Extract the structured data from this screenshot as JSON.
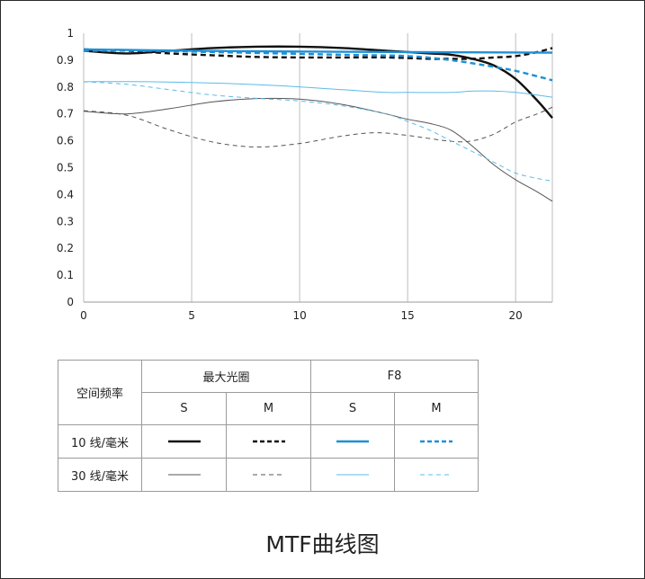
{
  "caption": "MTF曲线图",
  "colors": {
    "black": "#111111",
    "gray": "#555555",
    "blue": "#1e90d6",
    "lightblue": "#5bbbe8"
  },
  "legend_table": {
    "corner": "空间频率",
    "group_max": "最大光圈",
    "group_f8": "F8",
    "col_s": "S",
    "col_m": "M",
    "row_10": "10 线/毫米",
    "row_30": "30 线/毫米"
  },
  "chart_data": {
    "type": "line",
    "title": "",
    "xlabel": "",
    "ylabel": "",
    "xlim": [
      0,
      21.7
    ],
    "ylim": [
      0,
      1
    ],
    "x_ticks": [
      "0",
      "5",
      "10",
      "15",
      "20"
    ],
    "y_ticks": [
      "0",
      "0.1",
      "0.2",
      "0.3",
      "0.4",
      "0.5",
      "0.6",
      "0.7",
      "0.8",
      "0.9",
      "1"
    ],
    "grid": "vertical",
    "series": [
      {
        "group": "最大光圈",
        "freq": "10 线/毫米",
        "orient": "S",
        "color": "black",
        "style": "solid",
        "weight": "thick",
        "x": [
          0,
          2,
          4,
          6,
          8,
          10,
          12,
          14,
          16,
          17,
          18,
          19,
          20,
          21,
          21.7
        ],
        "y": [
          0.935,
          0.925,
          0.935,
          0.945,
          0.95,
          0.95,
          0.945,
          0.935,
          0.925,
          0.92,
          0.905,
          0.88,
          0.83,
          0.75,
          0.685
        ]
      },
      {
        "group": "最大光圈",
        "freq": "10 线/毫米",
        "orient": "M",
        "color": "black",
        "style": "dashed",
        "weight": "thick",
        "x": [
          0,
          2,
          4,
          6,
          8,
          10,
          12,
          14,
          16,
          17,
          18,
          19,
          20,
          21,
          21.7
        ],
        "y": [
          0.94,
          0.935,
          0.925,
          0.918,
          0.912,
          0.91,
          0.91,
          0.91,
          0.905,
          0.905,
          0.905,
          0.91,
          0.915,
          0.93,
          0.945
        ]
      },
      {
        "group": "F8",
        "freq": "10 线/毫米",
        "orient": "S",
        "color": "blue",
        "style": "solid",
        "weight": "thick",
        "x": [
          0,
          5,
          10,
          15,
          21.7
        ],
        "y": [
          0.94,
          0.935,
          0.932,
          0.93,
          0.928
        ]
      },
      {
        "group": "F8",
        "freq": "10 线/毫米",
        "orient": "M",
        "color": "blue",
        "style": "dashed",
        "weight": "thick",
        "x": [
          0,
          3,
          6,
          9,
          12,
          15,
          17,
          19,
          20,
          21,
          21.7
        ],
        "y": [
          0.935,
          0.935,
          0.93,
          0.925,
          0.92,
          0.915,
          0.9,
          0.875,
          0.86,
          0.84,
          0.825
        ]
      },
      {
        "group": "最大光圈",
        "freq": "30 线/毫米",
        "orient": "S",
        "color": "gray",
        "style": "solid",
        "weight": "thin",
        "x": [
          0,
          2,
          4,
          6,
          8,
          10,
          12,
          14,
          15,
          16,
          17,
          18,
          19,
          20,
          21,
          21.7
        ],
        "y": [
          0.71,
          0.7,
          0.72,
          0.745,
          0.757,
          0.755,
          0.735,
          0.7,
          0.68,
          0.665,
          0.64,
          0.58,
          0.51,
          0.455,
          0.41,
          0.375
        ]
      },
      {
        "group": "最大光圈",
        "freq": "30 线/毫米",
        "orient": "M",
        "color": "gray",
        "style": "dashed",
        "weight": "thin",
        "x": [
          0,
          2,
          4,
          6,
          8,
          10,
          12,
          13.5,
          15,
          17,
          18,
          19,
          20,
          21,
          21.7
        ],
        "y": [
          0.712,
          0.695,
          0.64,
          0.595,
          0.577,
          0.59,
          0.618,
          0.63,
          0.62,
          0.598,
          0.6,
          0.625,
          0.67,
          0.7,
          0.725
        ]
      },
      {
        "group": "F8",
        "freq": "30 线/毫米",
        "orient": "S",
        "color": "lightblue",
        "style": "solid",
        "weight": "thin",
        "x": [
          0,
          3,
          6,
          9,
          12,
          14,
          15,
          17,
          18,
          19,
          20,
          21,
          21.7
        ],
        "y": [
          0.82,
          0.82,
          0.815,
          0.805,
          0.79,
          0.78,
          0.78,
          0.78,
          0.785,
          0.785,
          0.78,
          0.77,
          0.762
        ]
      },
      {
        "group": "F8",
        "freq": "30 线/毫米",
        "orient": "M",
        "color": "lightblue",
        "style": "dashed",
        "weight": "thin",
        "x": [
          0,
          2,
          4,
          6,
          8,
          10,
          12,
          14,
          15,
          16,
          17,
          18,
          19,
          20,
          21,
          21.7
        ],
        "y": [
          0.82,
          0.81,
          0.79,
          0.77,
          0.758,
          0.748,
          0.73,
          0.7,
          0.672,
          0.64,
          0.6,
          0.56,
          0.52,
          0.48,
          0.46,
          0.45
        ]
      }
    ]
  }
}
